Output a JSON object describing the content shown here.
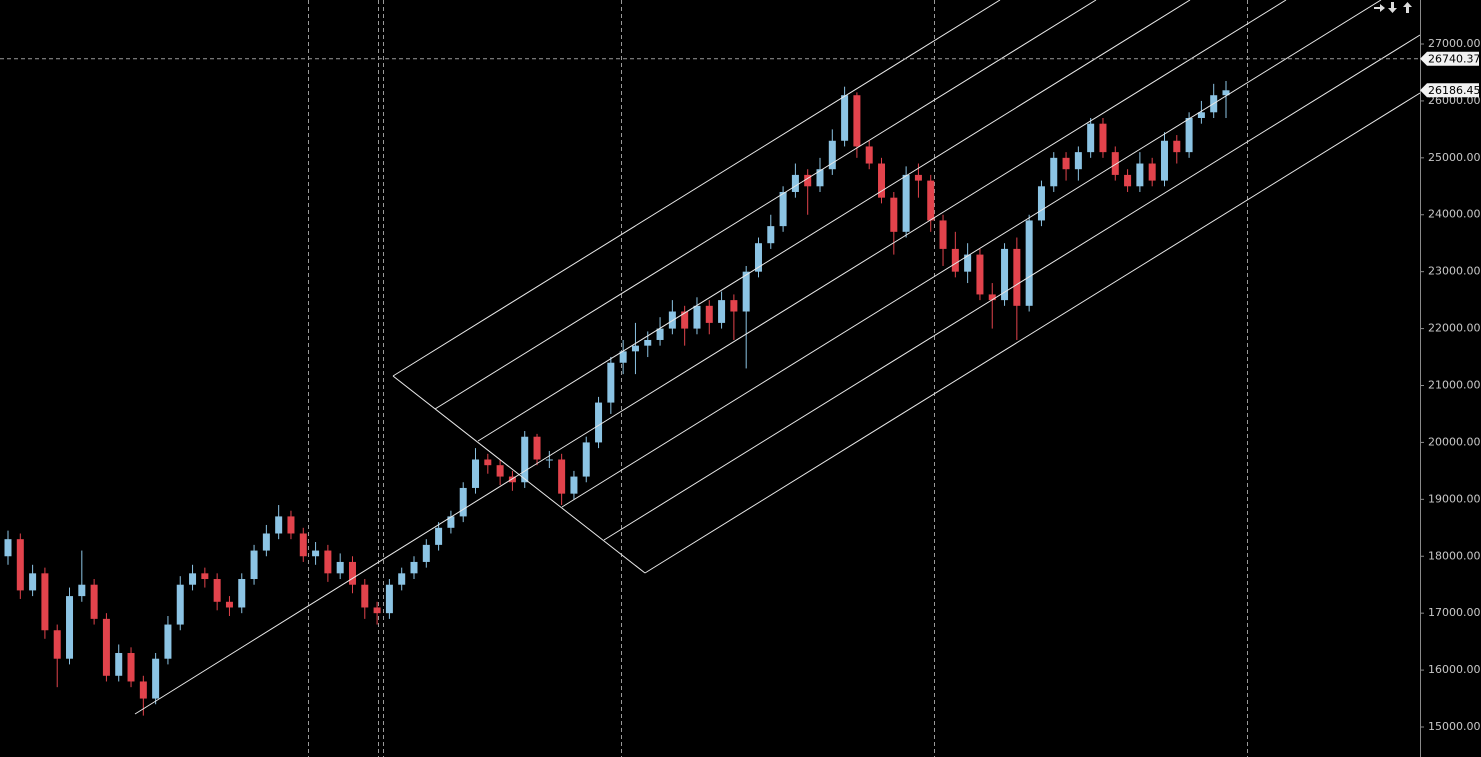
{
  "chart_data": {
    "type": "candlestick",
    "up_color": "#8cc4e4",
    "down_color": "#e2434c",
    "ylim": [
      14473,
      27773
    ],
    "yticks": [
      {
        "value": 15000,
        "label": "15000.00"
      },
      {
        "value": 16000,
        "label": "16000.00"
      },
      {
        "value": 17000,
        "label": "17000.00"
      },
      {
        "value": 18000,
        "label": "18000.00"
      },
      {
        "value": 19000,
        "label": "19000.00"
      },
      {
        "value": 20000,
        "label": "20000.00"
      },
      {
        "value": 21000,
        "label": "21000.00"
      },
      {
        "value": 22000,
        "label": "22000.00"
      },
      {
        "value": 23000,
        "label": "23000.00"
      },
      {
        "value": 24000,
        "label": "24000.00"
      },
      {
        "value": 25000,
        "label": "25000.00"
      },
      {
        "value": 26000,
        "label": "26000.00"
      },
      {
        "value": 27000,
        "label": "27000.00"
      }
    ],
    "crosshair_price": 26740.37,
    "last_price": 26186.45,
    "open": [
      18000,
      18300,
      17400,
      17700,
      16700,
      16200,
      17300,
      17500,
      16900,
      15900,
      16300,
      15800,
      15500,
      16200,
      16800,
      17500,
      17700,
      17600,
      17200,
      17100,
      17600,
      18100,
      18400,
      18700,
      18400,
      18000,
      18100,
      17700,
      17900,
      17500,
      17100,
      17000,
      17500,
      17700,
      17900,
      18200,
      18500,
      18700,
      19200,
      19700,
      19600,
      19400,
      19300,
      20100,
      19700,
      19700,
      19100,
      19400,
      20000,
      20700,
      21400,
      21600,
      21700,
      21800,
      22000,
      22300,
      22000,
      22400,
      22100,
      22500,
      22300,
      23000,
      23500,
      23800,
      24400,
      24700,
      24500,
      24800,
      25300,
      26100,
      25200,
      24900,
      24300,
      23700,
      24700,
      24600,
      23900,
      23400,
      23000,
      23300,
      22600,
      22500,
      23400,
      22400,
      23900,
      24500,
      25000,
      24800,
      25100,
      25600,
      25100,
      24700,
      24500,
      24900,
      24600,
      25300,
      25100,
      25700,
      25800,
      26100
    ],
    "high": [
      18450,
      18400,
      17850,
      17800,
      16800,
      17450,
      18100,
      17600,
      17000,
      16450,
      16400,
      15900,
      16300,
      16950,
      17650,
      17850,
      17800,
      17700,
      17300,
      17700,
      18200,
      18550,
      18900,
      18800,
      18500,
      18250,
      18200,
      18050,
      18000,
      17600,
      17200,
      17600,
      17800,
      18000,
      18300,
      18600,
      18800,
      19300,
      19900,
      19800,
      19700,
      19500,
      20200,
      20150,
      19850,
      19800,
      19500,
      20100,
      20800,
      21500,
      21800,
      22100,
      21950,
      22200,
      22500,
      22400,
      22550,
      22500,
      22650,
      22600,
      23100,
      23600,
      24000,
      24500,
      24900,
      24800,
      25000,
      25500,
      26250,
      26150,
      25300,
      25000,
      24400,
      24850,
      24900,
      24700,
      24000,
      23700,
      23500,
      23400,
      22800,
      23500,
      23600,
      24000,
      24600,
      25100,
      25100,
      25200,
      25700,
      25700,
      25200,
      24800,
      25100,
      25000,
      25450,
      25400,
      25800,
      26000,
      26300,
      26350
    ],
    "low": [
      17850,
      17250,
      17300,
      16550,
      15700,
      16100,
      17200,
      16800,
      15800,
      15800,
      15700,
      15200,
      15400,
      16100,
      16700,
      17400,
      17450,
      17050,
      16950,
      17000,
      17500,
      18000,
      18300,
      18300,
      17900,
      17850,
      17550,
      17600,
      17350,
      16900,
      16800,
      16900,
      17400,
      17600,
      17800,
      18100,
      18400,
      18600,
      19100,
      19450,
      19250,
      19150,
      19200,
      19600,
      19550,
      18900,
      19000,
      19300,
      19900,
      20500,
      21200,
      21200,
      21500,
      21700,
      21900,
      21700,
      21900,
      21900,
      22000,
      21800,
      21300,
      22900,
      23400,
      23700,
      24300,
      24000,
      24400,
      24700,
      25200,
      25000,
      24800,
      24200,
      23300,
      23600,
      24300,
      23700,
      23100,
      22900,
      22800,
      22500,
      22000,
      22400,
      21800,
      22300,
      23800,
      24400,
      24600,
      24600,
      25000,
      25000,
      24600,
      24400,
      24400,
      24500,
      24500,
      24900,
      25000,
      25600,
      25700,
      25700
    ],
    "close": [
      18300,
      17400,
      17700,
      16700,
      16200,
      17300,
      17500,
      16900,
      15900,
      16300,
      15800,
      15500,
      16200,
      16800,
      17500,
      17700,
      17600,
      17200,
      17100,
      17600,
      18100,
      18400,
      18700,
      18400,
      18000,
      18100,
      17700,
      17900,
      17500,
      17100,
      17000,
      17500,
      17700,
      17900,
      18200,
      18500,
      18700,
      19200,
      19700,
      19600,
      19400,
      19300,
      20100,
      19700,
      19700,
      19100,
      19400,
      20000,
      20700,
      21400,
      21600,
      21700,
      21800,
      22000,
      22300,
      22000,
      22400,
      22100,
      22500,
      22300,
      23000,
      23500,
      23800,
      24400,
      24700,
      24500,
      24800,
      25300,
      26100,
      25200,
      24900,
      24300,
      23700,
      24700,
      24600,
      23900,
      23400,
      23000,
      23300,
      22600,
      22500,
      23400,
      22400,
      23900,
      24500,
      25000,
      24800,
      25100,
      25600,
      25100,
      24700,
      24500,
      24900,
      24600,
      25300,
      25100,
      25700,
      25800,
      26100,
      26186.45
    ]
  }
}
